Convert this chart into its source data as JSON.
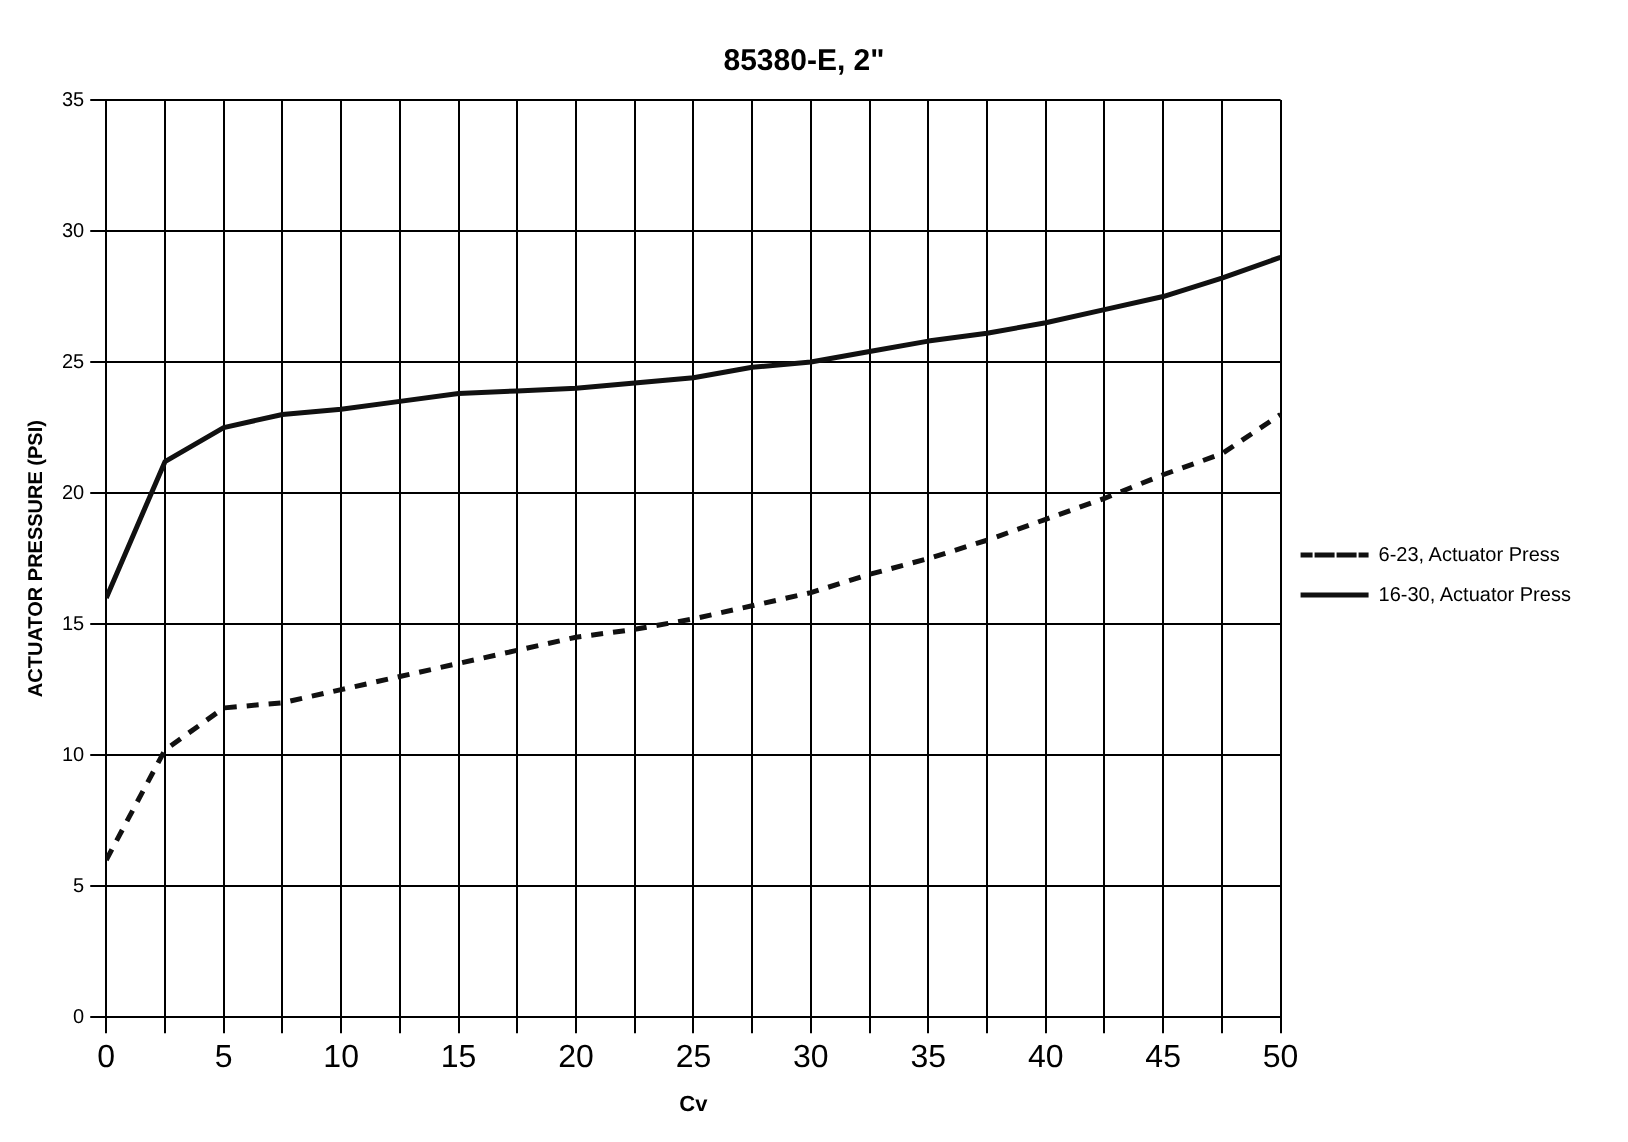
{
  "chart_data": {
    "type": "line",
    "title": "85380-E, 2\"",
    "xlabel": "Cv",
    "ylabel": "ACTUATOR PRESSURE (PSI)",
    "x": [
      0,
      2.5,
      5,
      7.5,
      10,
      12.5,
      15,
      17.5,
      20,
      22.5,
      25,
      27.5,
      30,
      32.5,
      35,
      37.5,
      40,
      42.5,
      45,
      47.5,
      50
    ],
    "series": [
      {
        "name": "6-23, Actuator Press",
        "color": "#111111",
        "line_style": "dashed",
        "values": [
          6,
          10.2,
          11.8,
          12,
          12.5,
          13,
          13.5,
          14,
          14.5,
          14.8,
          15.2,
          15.7,
          16.2,
          16.9,
          17.5,
          18.2,
          19,
          19.8,
          20.7,
          21.5,
          23
        ]
      },
      {
        "name": "16-30, Actuator Press",
        "color": "#111111",
        "line_style": "solid",
        "values": [
          16,
          21.2,
          22.5,
          23,
          23.2,
          23.5,
          23.8,
          23.9,
          24,
          24.2,
          24.4,
          24.8,
          25,
          25.4,
          25.8,
          26.1,
          26.5,
          27,
          27.5,
          28.2,
          29
        ]
      }
    ],
    "xlim": [
      0,
      50
    ],
    "xticks": [
      0,
      {
        "value": 2.5,
        "label": null
      },
      5,
      {
        "value": 7.5,
        "label": null
      },
      10,
      {
        "value": 12.5,
        "label": null
      },
      15,
      {
        "value": 17.5,
        "label": null
      },
      20,
      {
        "value": 22.5,
        "label": null
      },
      25,
      {
        "value": 27.5,
        "label": null
      },
      30,
      {
        "value": 32.5,
        "label": null
      },
      35,
      {
        "value": 37.5,
        "label": null
      },
      40,
      {
        "value": 42.5,
        "label": null
      },
      45,
      {
        "value": 47.5,
        "label": null
      },
      50
    ],
    "ylim": [
      0,
      35
    ],
    "yticks": [
      0,
      5,
      10,
      15,
      20,
      25,
      30,
      35
    ],
    "grid": true,
    "legend": "right",
    "marker": "none"
  }
}
